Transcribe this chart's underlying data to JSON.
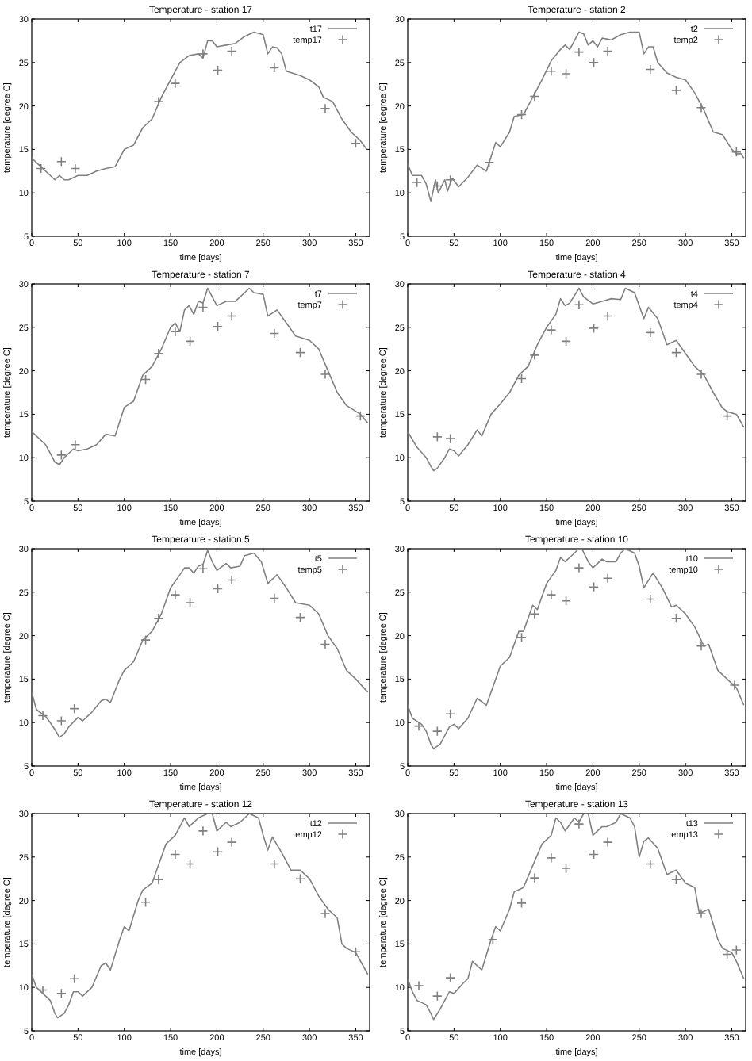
{
  "chart_data": [
    {
      "type": "line",
      "title": "Temperature - station 17",
      "xlabel": "time [days]",
      "ylabel": "temperature [degree C]",
      "xlim": [
        0,
        365
      ],
      "ylim": [
        5,
        30
      ],
      "xticks": [
        0,
        50,
        100,
        150,
        200,
        250,
        300,
        350
      ],
      "yticks": [
        5,
        10,
        15,
        20,
        25,
        30
      ],
      "legend": "top right",
      "series": [
        {
          "name": "t17",
          "color": "#808080",
          "line_style": "solid",
          "x": [
            0,
            10,
            20,
            25,
            30,
            35,
            40,
            50,
            60,
            70,
            80,
            90,
            100,
            110,
            120,
            130,
            140,
            150,
            160,
            170,
            180,
            185,
            190,
            195,
            200,
            210,
            220,
            230,
            240,
            250,
            255,
            260,
            265,
            270,
            275,
            290,
            300,
            310,
            315,
            325,
            335,
            345,
            355,
            362
          ],
          "values": [
            14,
            13,
            12,
            11.5,
            12,
            11.5,
            11.5,
            12,
            12,
            12.5,
            12.8,
            13,
            15,
            15.5,
            17.5,
            18.5,
            21,
            23,
            25,
            25.8,
            26,
            25.5,
            27.5,
            27.5,
            26.8,
            27,
            27.2,
            28,
            28.5,
            28.2,
            26,
            26.8,
            26.7,
            26,
            24,
            23.5,
            23,
            22.2,
            21,
            20.5,
            18.5,
            17,
            16,
            15
          ]
        },
        {
          "name": "temp17",
          "color": "#808080",
          "type": "scatter",
          "marker": "cross",
          "x": [
            10,
            32,
            47,
            137,
            155,
            185,
            201,
            216,
            262,
            317,
            350
          ],
          "values": [
            12.8,
            13.6,
            12.8,
            20.5,
            22.6,
            26,
            24.1,
            26.3,
            24.4,
            19.7,
            15.7
          ]
        }
      ]
    },
    {
      "type": "line",
      "title": "Temperature - station 2",
      "xlabel": "time [days]",
      "ylabel": "temperature [degree C]",
      "xlim": [
        0,
        365
      ],
      "ylim": [
        5,
        30
      ],
      "xticks": [
        0,
        50,
        100,
        150,
        200,
        250,
        300,
        350
      ],
      "yticks": [
        5,
        10,
        15,
        20,
        25,
        30
      ],
      "legend": "top right",
      "series": [
        {
          "name": "t2",
          "color": "#808080",
          "line_style": "solid",
          "x": [
            0,
            5,
            10,
            15,
            20,
            25,
            30,
            33,
            40,
            43,
            48,
            55,
            65,
            75,
            85,
            95,
            100,
            110,
            115,
            125,
            135,
            145,
            155,
            165,
            170,
            175,
            185,
            190,
            195,
            200,
            205,
            210,
            220,
            230,
            240,
            250,
            255,
            260,
            265,
            270,
            280,
            290,
            300,
            310,
            320,
            330,
            340,
            350,
            355,
            360,
            363
          ],
          "values": [
            13.3,
            12,
            12,
            12,
            11,
            9,
            11.5,
            10,
            11.5,
            10.2,
            11.7,
            10.7,
            11.8,
            13.2,
            12.5,
            15.8,
            15.3,
            17,
            18.8,
            19,
            21,
            23,
            25.2,
            26.5,
            27,
            26.5,
            28.5,
            28.3,
            27,
            27.5,
            26.8,
            27.8,
            27.6,
            28.2,
            28.5,
            28.5,
            26,
            26.8,
            26.8,
            25,
            23.8,
            23.3,
            23,
            21.5,
            19.5,
            17,
            16.7,
            15,
            14.5,
            14.5,
            14
          ]
        },
        {
          "name": "temp2",
          "color": "#808080",
          "type": "scatter",
          "marker": "cross",
          "x": [
            10,
            32,
            46,
            88,
            123,
            137,
            155,
            171,
            185,
            201,
            216,
            262,
            290,
            317,
            355
          ],
          "values": [
            11.2,
            10.8,
            11.5,
            13.5,
            19,
            21.1,
            24,
            23.7,
            26.2,
            25,
            26.3,
            24.2,
            21.8,
            19.8,
            14.7
          ]
        }
      ]
    },
    {
      "type": "line",
      "title": "Temperature - station 7",
      "xlabel": "time [days]",
      "ylabel": "temperature [degree C]",
      "xlim": [
        0,
        365
      ],
      "ylim": [
        5,
        30
      ],
      "xticks": [
        0,
        50,
        100,
        150,
        200,
        250,
        300,
        350
      ],
      "yticks": [
        5,
        10,
        15,
        20,
        25,
        30
      ],
      "legend": "top right",
      "series": [
        {
          "name": "t7",
          "color": "#808080",
          "line_style": "solid",
          "x": [
            0,
            10,
            15,
            20,
            25,
            30,
            35,
            40,
            45,
            50,
            60,
            70,
            80,
            90,
            100,
            110,
            120,
            130,
            140,
            150,
            155,
            160,
            165,
            170,
            175,
            180,
            185,
            190,
            195,
            200,
            210,
            220,
            230,
            235,
            240,
            250,
            255,
            265,
            275,
            285,
            300,
            310,
            320,
            330,
            340,
            355,
            363
          ],
          "values": [
            13,
            12,
            11.5,
            10.5,
            9.5,
            9.2,
            10,
            10.5,
            11,
            10.8,
            11,
            11.5,
            12.7,
            12.5,
            15.8,
            16.5,
            19.5,
            20.5,
            22.5,
            25,
            25.5,
            24.5,
            27,
            27.5,
            26.5,
            28,
            27.8,
            29.5,
            28.5,
            27.5,
            28,
            28,
            29,
            29.5,
            29,
            28.8,
            26.3,
            27,
            25.5,
            24,
            23.5,
            22.5,
            20,
            17.5,
            16,
            15,
            14
          ]
        },
        {
          "name": "temp7",
          "color": "#808080",
          "type": "scatter",
          "marker": "cross",
          "x": [
            32,
            47,
            123,
            137,
            155,
            171,
            185,
            201,
            216,
            262,
            290,
            317,
            355
          ],
          "values": [
            10.3,
            11.5,
            19,
            22,
            24.5,
            23.4,
            27.3,
            25.1,
            26.3,
            24.3,
            22.1,
            19.6,
            14.8
          ]
        }
      ]
    },
    {
      "type": "line",
      "title": "Temperature - station 4",
      "xlabel": "time [days]",
      "ylabel": "temperature [degree C]",
      "xlim": [
        0,
        365
      ],
      "ylim": [
        5,
        30
      ],
      "xticks": [
        0,
        50,
        100,
        150,
        200,
        250,
        300,
        350
      ],
      "yticks": [
        5,
        10,
        15,
        20,
        25,
        30
      ],
      "legend": "top right",
      "series": [
        {
          "name": "t4",
          "color": "#808080",
          "line_style": "solid",
          "x": [
            0,
            10,
            20,
            25,
            28,
            32,
            40,
            45,
            50,
            55,
            65,
            75,
            80,
            90,
            100,
            110,
            120,
            130,
            140,
            150,
            160,
            165,
            170,
            175,
            185,
            190,
            200,
            210,
            220,
            230,
            235,
            245,
            250,
            255,
            260,
            270,
            280,
            290,
            300,
            310,
            320,
            330,
            340,
            345,
            355,
            363
          ],
          "values": [
            13,
            11.2,
            10,
            9,
            8.5,
            8.8,
            10,
            11,
            10.8,
            10.2,
            11.5,
            13.2,
            12.5,
            15,
            16.2,
            17.5,
            19.5,
            20.5,
            23,
            25,
            26.5,
            28.3,
            27.5,
            27.8,
            29.5,
            28.5,
            27.7,
            28,
            28.3,
            28.2,
            29.5,
            29,
            27.5,
            26,
            27.3,
            26,
            23,
            23.5,
            22,
            20.5,
            19.5,
            17.5,
            15.7,
            15.3,
            15,
            13.5
          ]
        },
        {
          "name": "temp4",
          "color": "#808080",
          "type": "scatter",
          "marker": "cross",
          "x": [
            32,
            46,
            123,
            137,
            155,
            171,
            185,
            201,
            216,
            262,
            290,
            317,
            345
          ],
          "values": [
            12.4,
            12.2,
            19.1,
            21.8,
            24.7,
            23.4,
            27.6,
            24.9,
            26.3,
            24.4,
            22.1,
            19.6,
            14.8
          ]
        }
      ]
    },
    {
      "type": "line",
      "title": "Temperature - station 5",
      "xlabel": "time [days]",
      "ylabel": "temperature [degree C]",
      "xlim": [
        0,
        365
      ],
      "ylim": [
        5,
        30
      ],
      "xticks": [
        0,
        50,
        100,
        150,
        200,
        250,
        300,
        350
      ],
      "yticks": [
        5,
        10,
        15,
        20,
        25,
        30
      ],
      "legend": "top right",
      "series": [
        {
          "name": "t5",
          "color": "#808080",
          "line_style": "solid",
          "x": [
            0,
            5,
            15,
            20,
            25,
            30,
            35,
            40,
            50,
            55,
            65,
            75,
            80,
            85,
            95,
            100,
            110,
            120,
            130,
            140,
            150,
            160,
            165,
            170,
            175,
            180,
            185,
            190,
            195,
            200,
            210,
            215,
            225,
            230,
            240,
            248,
            255,
            265,
            275,
            285,
            300,
            310,
            320,
            330,
            340,
            350,
            363
          ],
          "values": [
            13.5,
            11.5,
            10.7,
            10,
            9.2,
            8.3,
            8.7,
            9.5,
            10.6,
            10.2,
            11.2,
            12.5,
            12.7,
            12.3,
            15,
            16,
            17,
            19.5,
            20.5,
            22.5,
            25.5,
            27,
            27.8,
            27.8,
            27.2,
            28,
            28.2,
            29.8,
            28.5,
            27.5,
            28.3,
            27.8,
            28,
            29.2,
            29.5,
            28.5,
            26,
            27,
            25.5,
            23.8,
            23.5,
            22.5,
            20,
            18.5,
            16,
            15,
            13.5
          ]
        },
        {
          "name": "temp5",
          "color": "#808080",
          "type": "scatter",
          "marker": "cross",
          "x": [
            12,
            32,
            46,
            123,
            137,
            155,
            171,
            185,
            201,
            216,
            262,
            290,
            317
          ],
          "values": [
            10.8,
            10.2,
            11.6,
            19.5,
            22,
            24.7,
            23.8,
            27.7,
            25.4,
            26.4,
            24.3,
            22.1,
            19
          ]
        }
      ]
    },
    {
      "type": "line",
      "title": "Temperature - station 10",
      "xlabel": "time [days]",
      "ylabel": "temperature [degree C]",
      "xlim": [
        0,
        365
      ],
      "ylim": [
        5,
        30
      ],
      "xticks": [
        0,
        50,
        100,
        150,
        200,
        250,
        300,
        350
      ],
      "yticks": [
        5,
        10,
        15,
        20,
        25,
        30
      ],
      "legend": "top right",
      "series": [
        {
          "name": "t10",
          "color": "#808080",
          "line_style": "solid",
          "x": [
            0,
            5,
            15,
            20,
            25,
            28,
            35,
            40,
            45,
            50,
            55,
            65,
            75,
            85,
            95,
            100,
            110,
            120,
            125,
            135,
            140,
            150,
            160,
            165,
            170,
            180,
            185,
            188,
            195,
            200,
            210,
            215,
            225,
            230,
            235,
            245,
            250,
            255,
            265,
            275,
            285,
            290,
            300,
            310,
            320,
            325,
            335,
            345,
            355,
            363
          ],
          "values": [
            12,
            10.5,
            9.8,
            9,
            7.5,
            7,
            7.5,
            8.5,
            9.5,
            9.8,
            9.3,
            10.5,
            12.8,
            12,
            15,
            16.5,
            17.5,
            20.5,
            20.5,
            23.5,
            23,
            26,
            27.5,
            29,
            28.5,
            29.5,
            30,
            30,
            28.5,
            27.8,
            28.8,
            28.5,
            28.5,
            29.5,
            30,
            29.5,
            28,
            25.5,
            27.2,
            25.5,
            23.3,
            23.5,
            22.5,
            21,
            18.8,
            19,
            16,
            15,
            14,
            12
          ]
        },
        {
          "name": "temp10",
          "color": "#808080",
          "type": "scatter",
          "marker": "cross",
          "x": [
            12,
            32,
            46,
            123,
            137,
            155,
            171,
            185,
            201,
            216,
            262,
            290,
            317,
            353
          ],
          "values": [
            9.6,
            9,
            11,
            19.8,
            22.5,
            24.7,
            24,
            27.8,
            25.6,
            26.6,
            24.2,
            22,
            18.8,
            14.3
          ]
        }
      ]
    },
    {
      "type": "line",
      "title": "Temperature - station 12",
      "xlabel": "time [days]",
      "ylabel": "temperature [degree C]",
      "xlim": [
        0,
        365
      ],
      "ylim": [
        5,
        30
      ],
      "xticks": [
        0,
        50,
        100,
        150,
        200,
        250,
        300,
        350
      ],
      "yticks": [
        5,
        10,
        15,
        20,
        25,
        30
      ],
      "legend": "top right",
      "series": [
        {
          "name": "t12",
          "color": "#808080",
          "line_style": "solid",
          "x": [
            0,
            5,
            15,
            20,
            25,
            28,
            35,
            40,
            45,
            50,
            55,
            65,
            75,
            80,
            85,
            95,
            100,
            105,
            115,
            120,
            130,
            135,
            145,
            155,
            165,
            170,
            180,
            190,
            195,
            200,
            210,
            215,
            225,
            235,
            245,
            250,
            255,
            260,
            270,
            280,
            290,
            300,
            310,
            320,
            330,
            335,
            340,
            350,
            363
          ],
          "values": [
            11.5,
            10,
            9,
            8.5,
            7,
            6.5,
            7,
            8,
            9.5,
            9.5,
            9,
            10,
            12.5,
            12.8,
            12,
            15.5,
            17,
            16.5,
            20,
            21.2,
            22,
            23.5,
            26.5,
            27.5,
            29.5,
            28.5,
            29.5,
            30,
            30,
            28,
            29,
            28.5,
            29,
            30,
            29.5,
            27.5,
            25.8,
            27.3,
            25.5,
            23.5,
            23.5,
            22.5,
            20.5,
            19,
            18,
            15,
            14.5,
            14,
            11.5
          ]
        },
        {
          "name": "temp12",
          "color": "#808080",
          "type": "scatter",
          "marker": "cross",
          "x": [
            12,
            32,
            46,
            123,
            137,
            155,
            171,
            185,
            201,
            216,
            262,
            290,
            317,
            350
          ],
          "values": [
            9.7,
            9.3,
            11,
            19.8,
            22.4,
            25.3,
            24.2,
            28,
            25.6,
            26.7,
            24.2,
            22.5,
            18.5,
            14.1
          ]
        }
      ]
    },
    {
      "type": "line",
      "title": "Temperature - station 13",
      "xlabel": "time [days]",
      "ylabel": "temperature [degree C]",
      "xlim": [
        0,
        365
      ],
      "ylim": [
        5,
        30
      ],
      "xticks": [
        0,
        50,
        100,
        150,
        200,
        250,
        300,
        350
      ],
      "yticks": [
        5,
        10,
        15,
        20,
        25,
        30
      ],
      "legend": "top right",
      "series": [
        {
          "name": "t13",
          "color": "#808080",
          "line_style": "solid",
          "x": [
            0,
            5,
            10,
            20,
            25,
            28,
            35,
            40,
            45,
            50,
            60,
            65,
            70,
            80,
            90,
            95,
            100,
            110,
            115,
            125,
            135,
            145,
            155,
            160,
            165,
            170,
            180,
            185,
            190,
            195,
            200,
            210,
            215,
            225,
            230,
            240,
            245,
            250,
            255,
            260,
            270,
            280,
            290,
            300,
            310,
            315,
            325,
            335,
            340,
            350,
            355,
            363
          ],
          "values": [
            11,
            9.5,
            8.5,
            8,
            7,
            6.3,
            7.5,
            8.5,
            9.5,
            9.3,
            10.5,
            11,
            13,
            12,
            15.5,
            17,
            16.5,
            19,
            21,
            21.5,
            24,
            26.5,
            27.5,
            29.5,
            29,
            28,
            29.5,
            29,
            30,
            30,
            27.5,
            28.5,
            28.5,
            29,
            30,
            29.5,
            28.5,
            25,
            26.8,
            27.2,
            26,
            23,
            23.5,
            22,
            21.5,
            18.5,
            19,
            15.5,
            14.5,
            14,
            13,
            11
          ]
        },
        {
          "name": "temp13",
          "color": "#808080",
          "type": "scatter",
          "marker": "cross",
          "x": [
            12,
            32,
            46,
            92,
            123,
            137,
            155,
            171,
            185,
            201,
            216,
            262,
            290,
            317,
            345,
            355
          ],
          "values": [
            10.2,
            9,
            11.1,
            15.5,
            19.7,
            22.6,
            24.9,
            23.7,
            28.8,
            25.3,
            26.7,
            24.2,
            22.4,
            18.5,
            13.8,
            14.3
          ]
        }
      ]
    }
  ]
}
